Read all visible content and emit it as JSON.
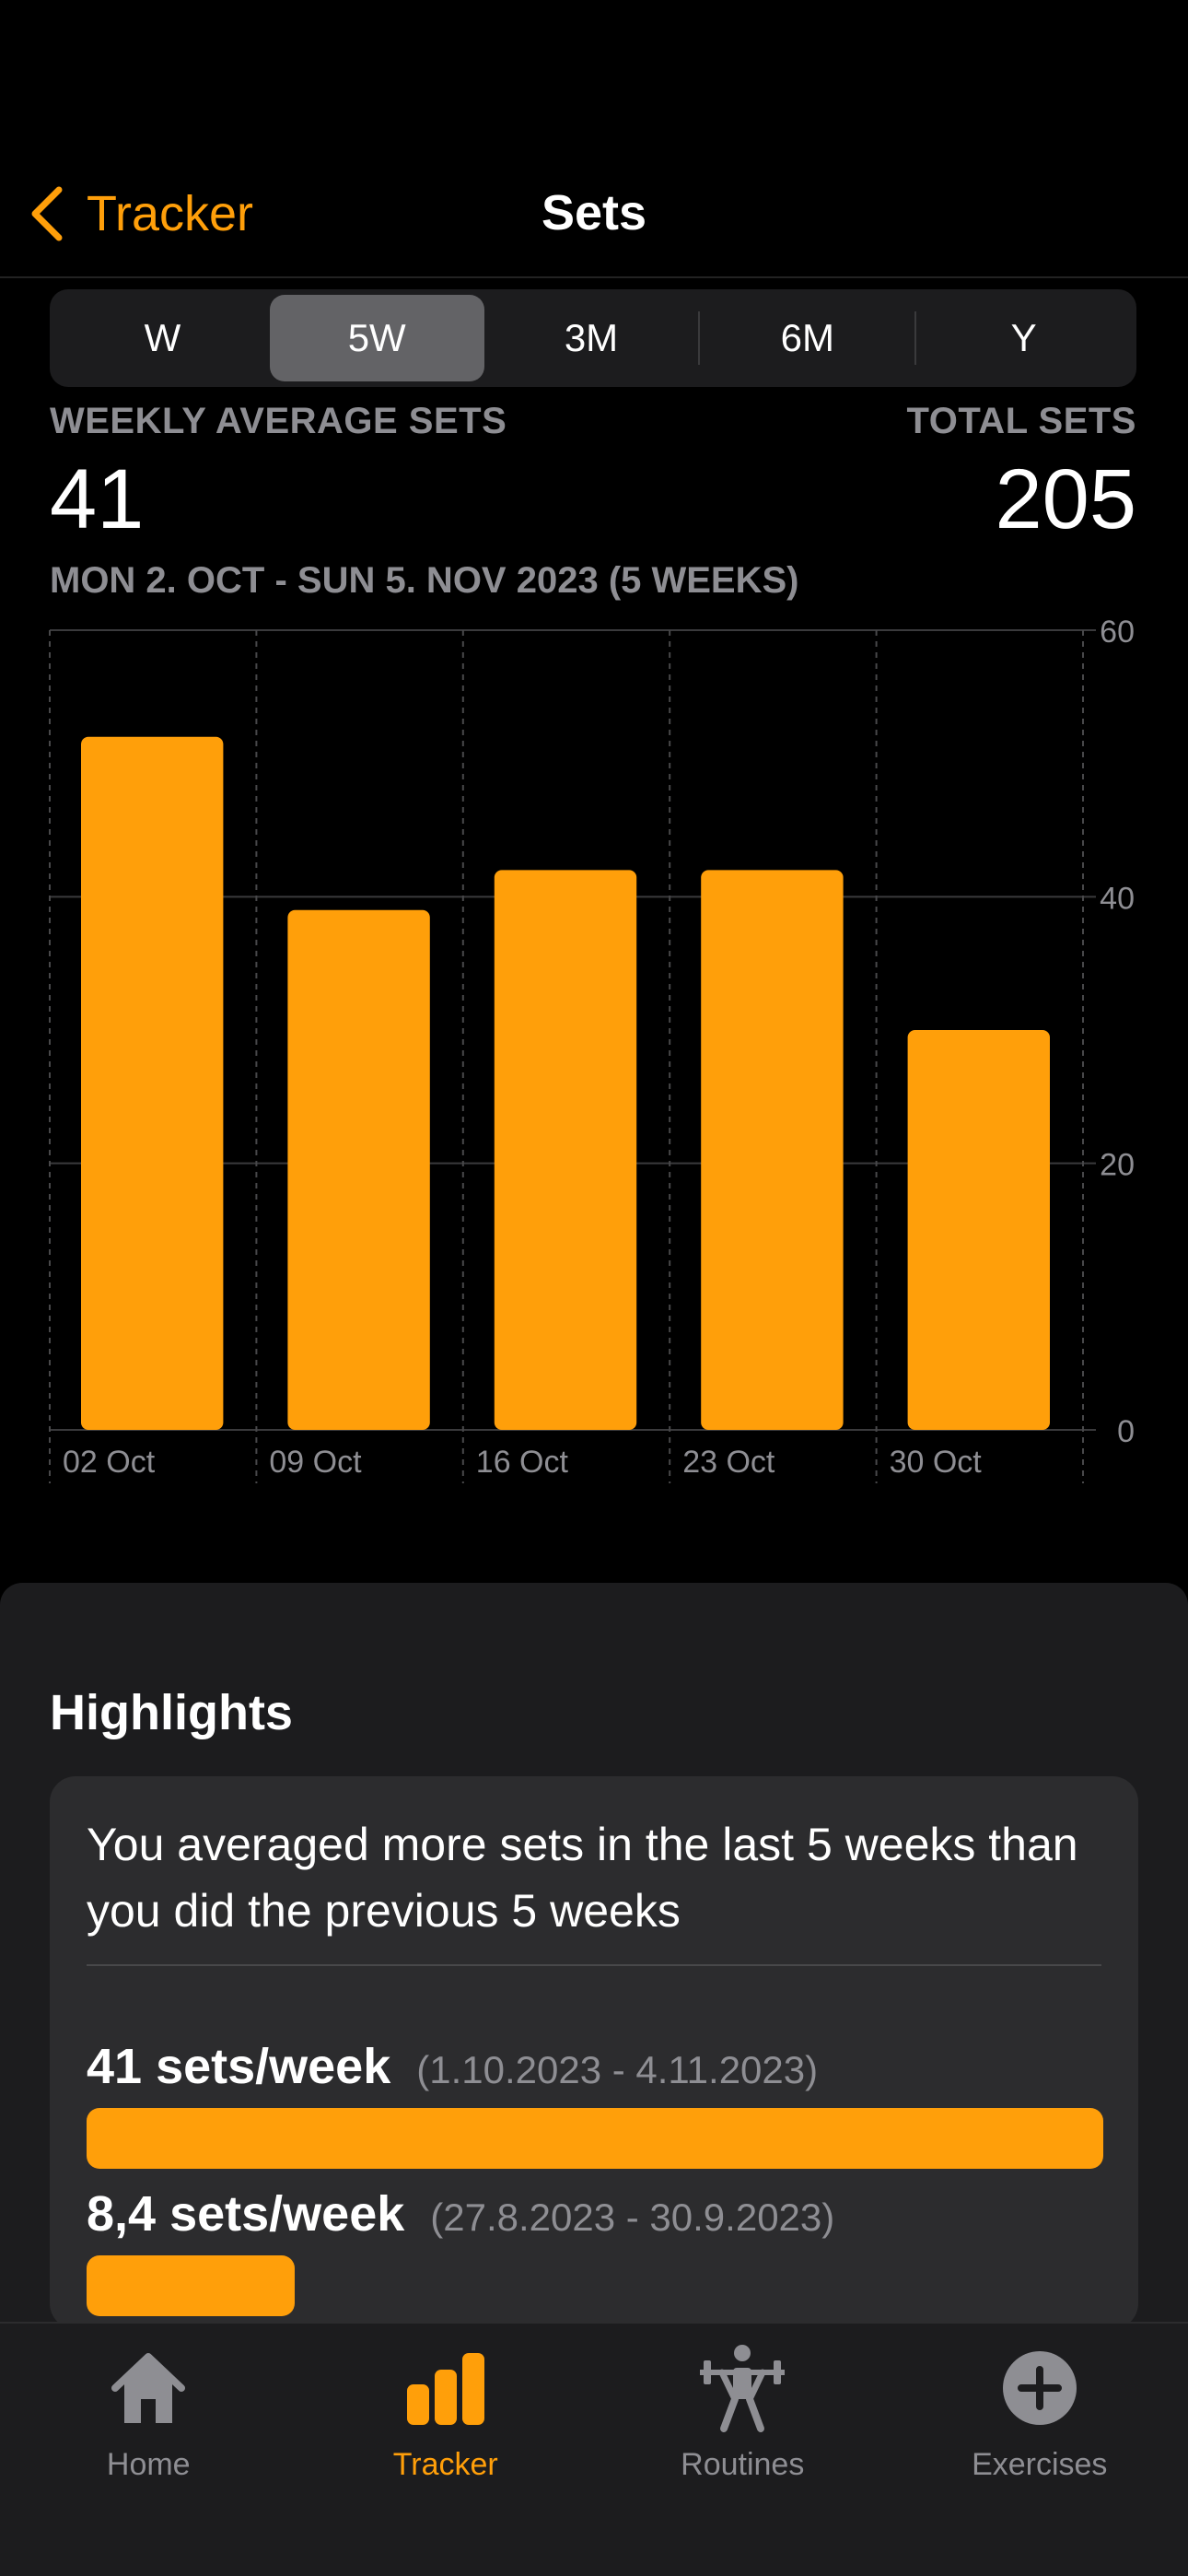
{
  "nav": {
    "back_label": "Tracker",
    "title": "Sets"
  },
  "segments": [
    "W",
    "5W",
    "3M",
    "6M",
    "Y"
  ],
  "selected_segment": "5W",
  "stats": {
    "avg_label": "WEEKLY AVERAGE SETS",
    "avg_value": "41",
    "total_label": "TOTAL SETS",
    "total_value": "205",
    "date_range": "MON 2. OCT - SUN 5. NOV 2023 (5 WEEKS)"
  },
  "chart_data": {
    "type": "bar",
    "categories": [
      "02 Oct",
      "09 Oct",
      "16 Oct",
      "23 Oct",
      "30 Oct"
    ],
    "values": [
      52,
      39,
      42,
      42,
      30
    ],
    "ylim": [
      0,
      60
    ],
    "yticks": [
      "0",
      "20",
      "40",
      "60"
    ],
    "grid": true,
    "color": "#ff9f0a"
  },
  "highlights": {
    "title": "Highlights",
    "message": "You averaged more sets in the last 5 weeks than you did the previous 5 weeks",
    "current": {
      "value": "41 sets/week",
      "dates": "(1.10.2023 - 4.11.2023)",
      "fraction": 1.0
    },
    "previous": {
      "value": "8,4 sets/week",
      "dates": "(27.8.2023 - 30.9.2023)",
      "fraction": 0.205
    }
  },
  "tabs": [
    {
      "label": "Home",
      "icon": "home-icon"
    },
    {
      "label": "Tracker",
      "icon": "chart-icon"
    },
    {
      "label": "Routines",
      "icon": "weightlifter-icon"
    },
    {
      "label": "Exercises",
      "icon": "plus-circle-icon"
    }
  ],
  "active_tab": "Tracker",
  "colors": {
    "accent": "#ff9f0a",
    "background": "#000000",
    "card": "#2c2c2e",
    "secondary_text": "#8e8e93"
  }
}
